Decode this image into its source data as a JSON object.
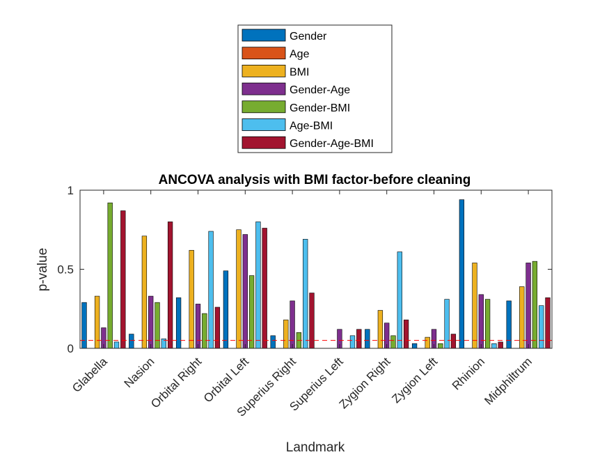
{
  "chart_data": {
    "type": "bar",
    "title": "ANCOVA analysis with BMI factor-before cleaning",
    "xlabel": "Landmark",
    "ylabel": "p-value",
    "ylim": [
      0,
      1
    ],
    "yticks": [
      0,
      0.5,
      1
    ],
    "ytick_labels": [
      "0",
      "0.5",
      "1"
    ],
    "grid": false,
    "legend_position": "top-center-outside",
    "categories": [
      "Glabella",
      "Nasion",
      "Orbital Right",
      "Orbital Left",
      "Superius Right",
      "Superius Left",
      "Zygion Right",
      "Zygion Left",
      "Rhinion",
      "Midphiltrum"
    ],
    "series": [
      {
        "name": "Gender",
        "color": "#0072BD",
        "values": [
          0.29,
          0.09,
          0.32,
          0.49,
          0.08,
          0.0,
          0.12,
          0.03,
          0.94,
          0.3
        ]
      },
      {
        "name": "Age",
        "color": "#D95319",
        "values": [
          0.0,
          0.0,
          0.0,
          0.0,
          0.0,
          0.0,
          0.0,
          0.0,
          0.0,
          0.0
        ]
      },
      {
        "name": "BMI",
        "color": "#EDB120",
        "values": [
          0.33,
          0.71,
          0.62,
          0.75,
          0.18,
          0.0,
          0.24,
          0.07,
          0.54,
          0.39
        ]
      },
      {
        "name": "Gender-Age",
        "color": "#7E2F8E",
        "values": [
          0.13,
          0.33,
          0.28,
          0.72,
          0.3,
          0.12,
          0.16,
          0.12,
          0.34,
          0.54
        ]
      },
      {
        "name": "Gender-BMI",
        "color": "#77AC30",
        "values": [
          0.92,
          0.29,
          0.22,
          0.46,
          0.1,
          0.0,
          0.08,
          0.03,
          0.31,
          0.55
        ]
      },
      {
        "name": "Age-BMI",
        "color": "#4DBEEE",
        "values": [
          0.04,
          0.06,
          0.74,
          0.8,
          0.69,
          0.08,
          0.61,
          0.31,
          0.03,
          0.27
        ]
      },
      {
        "name": "Gender-Age-BMI",
        "color": "#A2142F",
        "values": [
          0.87,
          0.8,
          0.26,
          0.76,
          0.35,
          0.12,
          0.18,
          0.09,
          0.04,
          0.32
        ]
      }
    ],
    "reference_line": {
      "y": 0.05,
      "color": "#FF0000",
      "style": "dashed"
    }
  }
}
